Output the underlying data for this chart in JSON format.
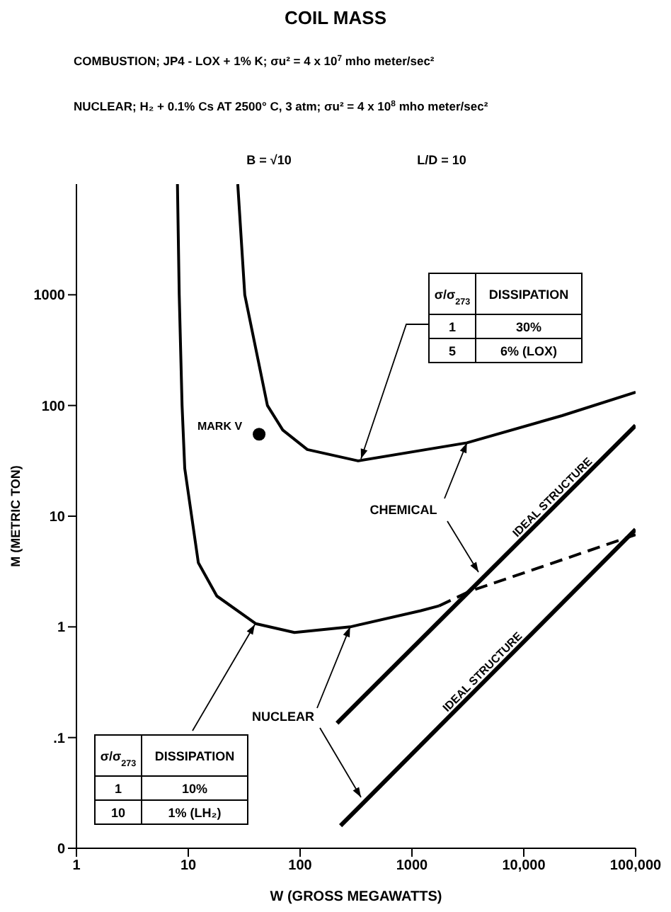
{
  "chart_data": {
    "type": "line",
    "title": "COIL MASS",
    "annotations": [
      "COMBUSTION; JP4 - LOX + 1% K; σu² = 4 x 10$^{7}$ mho meter/sec²",
      "NUCLEAR; H₂ + 0.1% Cs AT 2500° C, 3 atm; σu² = 4 x 10$^{8}$ mho meter/sec²",
      "B = √10",
      "L/D = 10",
      {
        "text": "CHEMICAL",
        "x": 3100,
        "y": 46
      },
      {
        "text": "NUCLEAR",
        "x": 280,
        "y": 1
      },
      "σ/σ$_{273}$",
      "DISSIPATION",
      "1",
      "30%",
      "5",
      "6% (LOX)",
      "σ/σ$_{273}$",
      "DISSIPATION",
      "1",
      "10%",
      "10",
      "1% (LH₂)"
    ],
    "xlabel": "W (GROSS MEGAWATTS)",
    "ylabel": "M (METRIC TON)",
    "log": "xy",
    "xlim": [
      1,
      100000
    ],
    "xticks": [
      1,
      10,
      100,
      1000,
      {
        "value": 10000,
        "label": "10,000"
      },
      {
        "value": 100000,
        "label": "100,000"
      }
    ],
    "ylim": [
      0.01,
      10000
    ],
    "yticks": [
      {
        "value": 0.01,
        "label": "0"
      },
      {
        "value": 0.1,
        "label": ".1"
      },
      1,
      10,
      100,
      1000
    ],
    "grid": false,
    "legend": false,
    "marker": "none",
    "line_style": "solid",
    "series": [
      {
        "color": "#000000",
        "x": [
          27.7,
          32,
          51,
          70,
          116,
          330,
          3100,
          22000,
          100000
        ],
        "values": [
          10000,
          1000,
          100,
          60,
          40,
          31.6,
          46,
          81,
          132
        ]
      },
      {
        "color": "#000000",
        "x": [
          8,
          8.3,
          8.8,
          9.3,
          12.3,
          18,
          40,
          89,
          280,
          1200,
          1750
        ],
        "values": [
          10000,
          1000,
          100,
          27,
          3.8,
          1.9,
          1.07,
          0.89,
          1,
          1.4,
          1.55
        ]
      },
      {
        "color": "#000000",
        "line_style": "dashed",
        "x": [
          1750,
          3300,
          100000
        ],
        "values": [
          1.55,
          2.1,
          6.8
        ]
      },
      {
        "name": "IDEAL STRUCTURE",
        "color": "#000000",
        "x": [
          214,
          100000
        ],
        "values": [
          0.135,
          66
        ]
      },
      {
        "name": "IDEAL STRUCTURE",
        "color": "#000000",
        "x": [
          230,
          100000
        ],
        "values": [
          0.016,
          7.6
        ]
      },
      {
        "type": "scatter",
        "name": "MARK V",
        "color": "#000000",
        "marker": "circle",
        "x": [
          43
        ],
        "values": [
          55
        ]
      }
    ]
  }
}
